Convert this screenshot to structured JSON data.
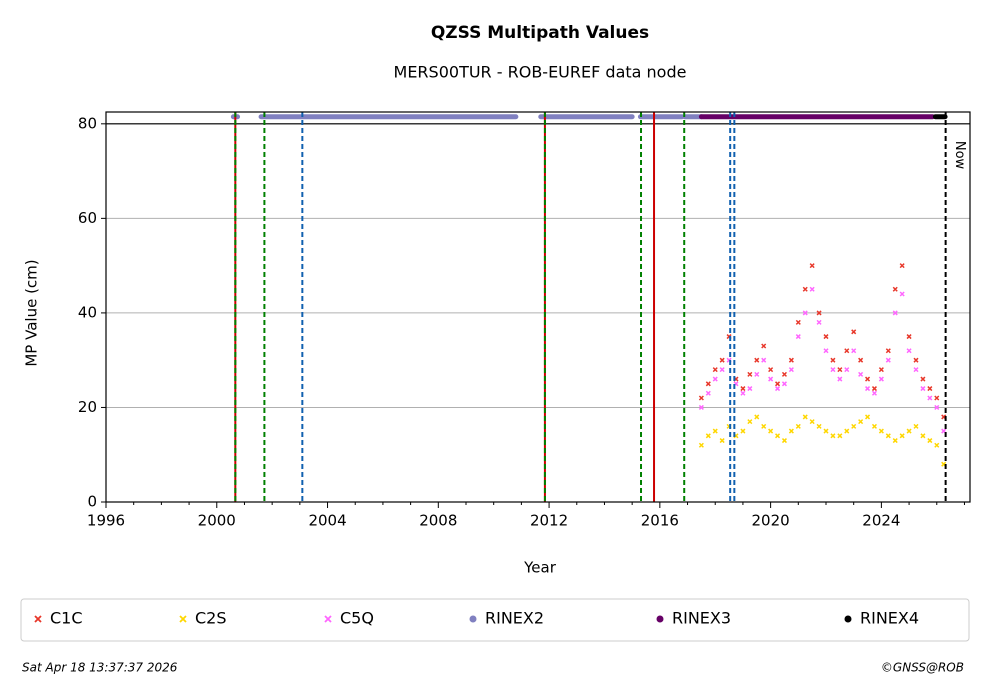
{
  "chart_data": {
    "type": "scatter",
    "title": "QZSS Multipath Values",
    "subtitle": "MERS00TUR - ROB-EUREF data node",
    "x_label": "Year",
    "y_label": "MP Value (cm)",
    "annotation": "Now",
    "footer_left": "Sat Apr 18 13:37:37 2026",
    "footer_right": "©GNSS@ROB",
    "xlim": [
      1996,
      2027.2
    ],
    "ylim": [
      0,
      82.5
    ],
    "xticks": [
      1996,
      2000,
      2004,
      2008,
      2012,
      2016,
      2020,
      2024
    ],
    "xminorticks": [
      1997,
      1998,
      1999,
      2001,
      2002,
      2003,
      2005,
      2006,
      2007,
      2009,
      2010,
      2011,
      2013,
      2014,
      2015,
      2017,
      2018,
      2019,
      2021,
      2022,
      2023,
      2025,
      2026,
      2027
    ],
    "yticks": [
      0,
      20,
      40,
      60,
      80
    ],
    "grid": true,
    "ref_line": 80,
    "events": [
      {
        "x": 2000.67,
        "color": "#cc0000",
        "style": "solid"
      },
      {
        "x": 2000.67,
        "color": "#008000",
        "style": "dashed"
      },
      {
        "x": 2001.72,
        "color": "#008000",
        "style": "dashed"
      },
      {
        "x": 2003.09,
        "color": "#1060b0",
        "style": "dashed"
      },
      {
        "x": 2011.85,
        "color": "#cc0000",
        "style": "solid"
      },
      {
        "x": 2011.85,
        "color": "#008000",
        "style": "dashed"
      },
      {
        "x": 2015.32,
        "color": "#008000",
        "style": "dashed"
      },
      {
        "x": 2015.79,
        "color": "#cc0000",
        "style": "solid"
      },
      {
        "x": 2016.88,
        "color": "#008000",
        "style": "dashed"
      },
      {
        "x": 2018.54,
        "color": "#1060b0",
        "style": "dashed"
      },
      {
        "x": 2018.69,
        "color": "#1060b0",
        "style": "dashed"
      },
      {
        "x": 2026.32,
        "color": "#000000",
        "style": "dashed"
      }
    ],
    "x": [
      2017.5,
      2017.75,
      2018,
      2018.25,
      2018.5,
      2018.75,
      2019,
      2019.25,
      2019.5,
      2019.75,
      2020,
      2020.25,
      2020.5,
      2020.75,
      2021,
      2021.25,
      2021.5,
      2021.75,
      2022,
      2022.25,
      2022.5,
      2022.75,
      2023,
      2023.25,
      2023.5,
      2023.75,
      2024,
      2024.25,
      2024.5,
      2024.75,
      2025,
      2025.25,
      2025.5,
      2025.75,
      2026,
      2026.25
    ],
    "series": [
      {
        "name": "C1C",
        "color": "#e8372a",
        "marker": "x",
        "values": [
          22,
          25,
          28,
          30,
          35,
          26,
          24,
          27,
          30,
          33,
          28,
          25,
          27,
          30,
          38,
          45,
          50,
          40,
          35,
          30,
          28,
          32,
          36,
          30,
          26,
          24,
          28,
          32,
          45,
          50,
          35,
          30,
          26,
          24,
          22,
          18
        ]
      },
      {
        "name": "C2S",
        "color": "#ffd700",
        "marker": "x",
        "values": [
          12,
          14,
          15,
          13,
          16,
          14,
          15,
          17,
          18,
          16,
          15,
          14,
          13,
          15,
          16,
          18,
          17,
          16,
          15,
          14,
          14,
          15,
          16,
          17,
          18,
          16,
          15,
          14,
          13,
          14,
          15,
          16,
          14,
          13,
          12,
          8
        ]
      },
      {
        "name": "C5Q",
        "color": "#ff66ff",
        "marker": "x",
        "values": [
          20,
          23,
          26,
          28,
          30,
          25,
          23,
          24,
          27,
          30,
          26,
          24,
          25,
          28,
          35,
          40,
          45,
          38,
          32,
          28,
          26,
          28,
          32,
          27,
          24,
          23,
          26,
          30,
          40,
          44,
          32,
          28,
          24,
          22,
          20,
          15
        ]
      }
    ],
    "rinex": [
      {
        "name": "RINEX2",
        "color": "#8080c0",
        "y": 81.5,
        "ranges": [
          [
            2000.6,
            2000.75
          ],
          [
            2001.6,
            2010.8
          ],
          [
            2011.7,
            2015.0
          ],
          [
            2015.3,
            2016.8
          ],
          [
            2016.9,
            2017.5
          ]
        ]
      },
      {
        "name": "RINEX3",
        "color": "#660066",
        "y": 81.5,
        "ranges": [
          [
            2017.5,
            2025.85
          ]
        ]
      },
      {
        "name": "RINEX4",
        "color": "#000000",
        "y": 81.5,
        "ranges": [
          [
            2025.95,
            2026.3
          ]
        ]
      }
    ]
  }
}
